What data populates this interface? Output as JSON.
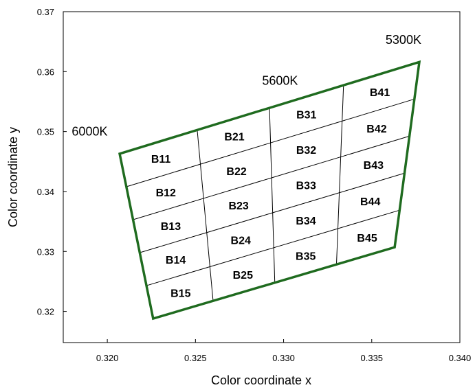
{
  "chart_data": {
    "type": "diagram",
    "xlabel": "Color coordinate x",
    "ylabel": "Color coordinate y",
    "xlim": [
      0.3175,
      0.34
    ],
    "ylim": [
      0.3148,
      0.37
    ],
    "x_ticks": [
      {
        "value": 0.32,
        "label": "0.320"
      },
      {
        "value": 0.325,
        "label": "0.325"
      },
      {
        "value": 0.33,
        "label": "0.330"
      },
      {
        "value": 0.335,
        "label": "0.335"
      },
      {
        "value": 0.34,
        "label": "0.340"
      }
    ],
    "y_ticks": [
      {
        "value": 0.32,
        "label": "0.32"
      },
      {
        "value": 0.33,
        "label": "0.33"
      },
      {
        "value": 0.34,
        "label": "0.34"
      },
      {
        "value": 0.35,
        "label": "0.35"
      },
      {
        "value": 0.36,
        "label": "0.36"
      },
      {
        "value": 0.37,
        "label": "0.37"
      }
    ],
    "outline_corners": {
      "top_left": [
        0.3207,
        0.3463
      ],
      "top_right": [
        0.3377,
        0.3616
      ],
      "bottom_right": [
        0.3363,
        0.3307
      ],
      "bottom_left": [
        0.3226,
        0.3188
      ]
    },
    "columns": 4,
    "rows": 5,
    "column_top_x": [
      0.3207,
      0.3251,
      0.3292,
      0.3334,
      0.3377
    ],
    "column_bottom_x": [
      0.3226,
      0.326,
      0.3295,
      0.333,
      0.3363
    ],
    "color_temperatures": [
      {
        "label": "6000K",
        "x": 0.319,
        "y": 0.35
      },
      {
        "label": "5600K",
        "x": 0.3298,
        "y": 0.3585
      },
      {
        "label": "5300K",
        "x": 0.3368,
        "y": 0.3653
      }
    ],
    "bins": [
      [
        "B11",
        "B12",
        "B13",
        "B14",
        "B15"
      ],
      [
        "B21",
        "B22",
        "B23",
        "B24",
        "B25"
      ],
      [
        "B31",
        "B32",
        "B33",
        "B34",
        "B35"
      ],
      [
        "B41",
        "B42",
        "B43",
        "B44",
        "B45"
      ]
    ]
  }
}
